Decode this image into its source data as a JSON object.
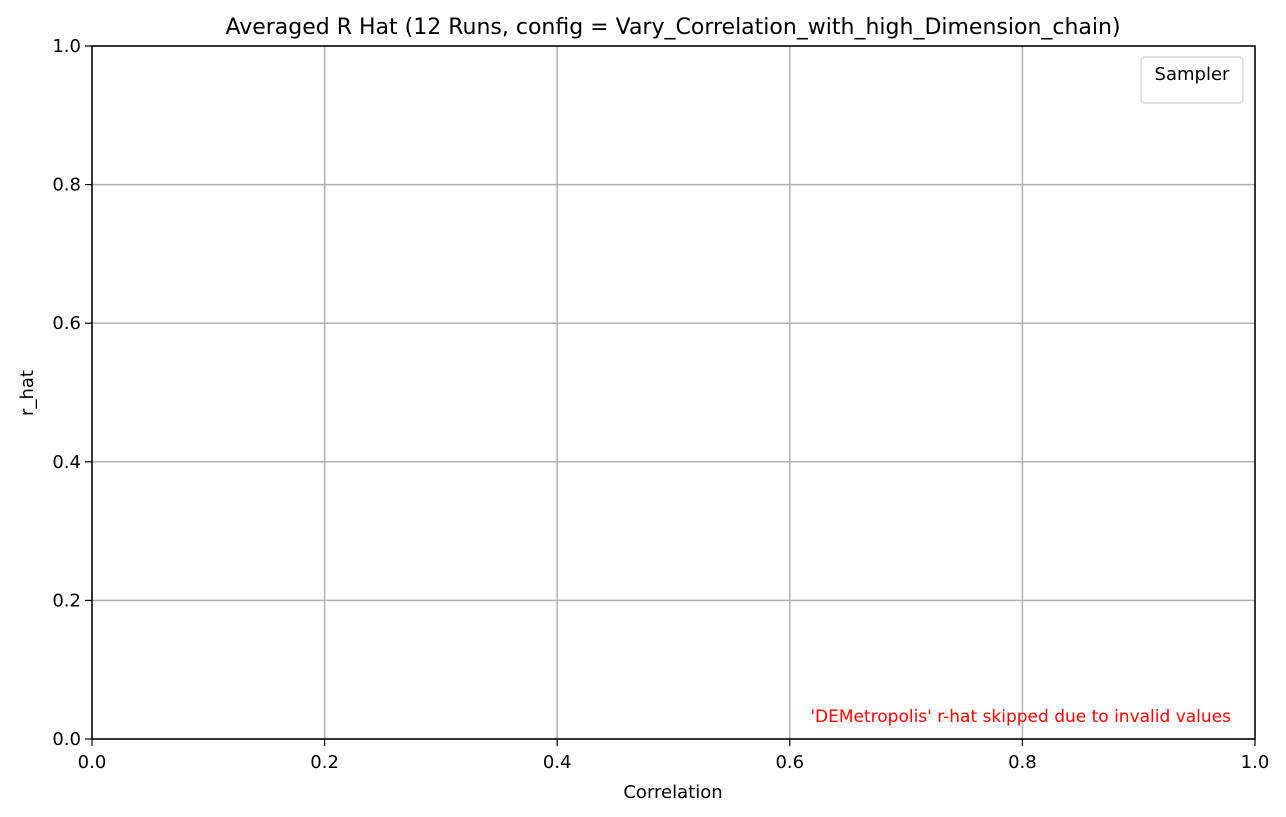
{
  "chart_data": {
    "type": "line",
    "title": "Averaged R Hat (12 Runs, config = Vary_Correlation_with_high_Dimension_chain)",
    "xlabel": "Correlation",
    "ylabel": "r_hat",
    "xlim": [
      0.0,
      1.0
    ],
    "ylim": [
      0.0,
      1.0
    ],
    "xticks": [
      0.0,
      0.2,
      0.4,
      0.6,
      0.8,
      1.0
    ],
    "xtick_labels": [
      "0.0",
      "0.2",
      "0.4",
      "0.6",
      "0.8",
      "1.0"
    ],
    "yticks": [
      0.0,
      0.2,
      0.4,
      0.6,
      0.8,
      1.0
    ],
    "ytick_labels": [
      "0.0",
      "0.2",
      "0.4",
      "0.6",
      "0.8",
      "1.0"
    ],
    "grid": true,
    "legend": {
      "title": "Sampler",
      "position": "top-right",
      "entries": []
    },
    "series": [],
    "annotation": {
      "text": "'DEMetropolis' r-hat skipped due to invalid values",
      "color": "#ff0000",
      "position": "bottom-right"
    }
  }
}
